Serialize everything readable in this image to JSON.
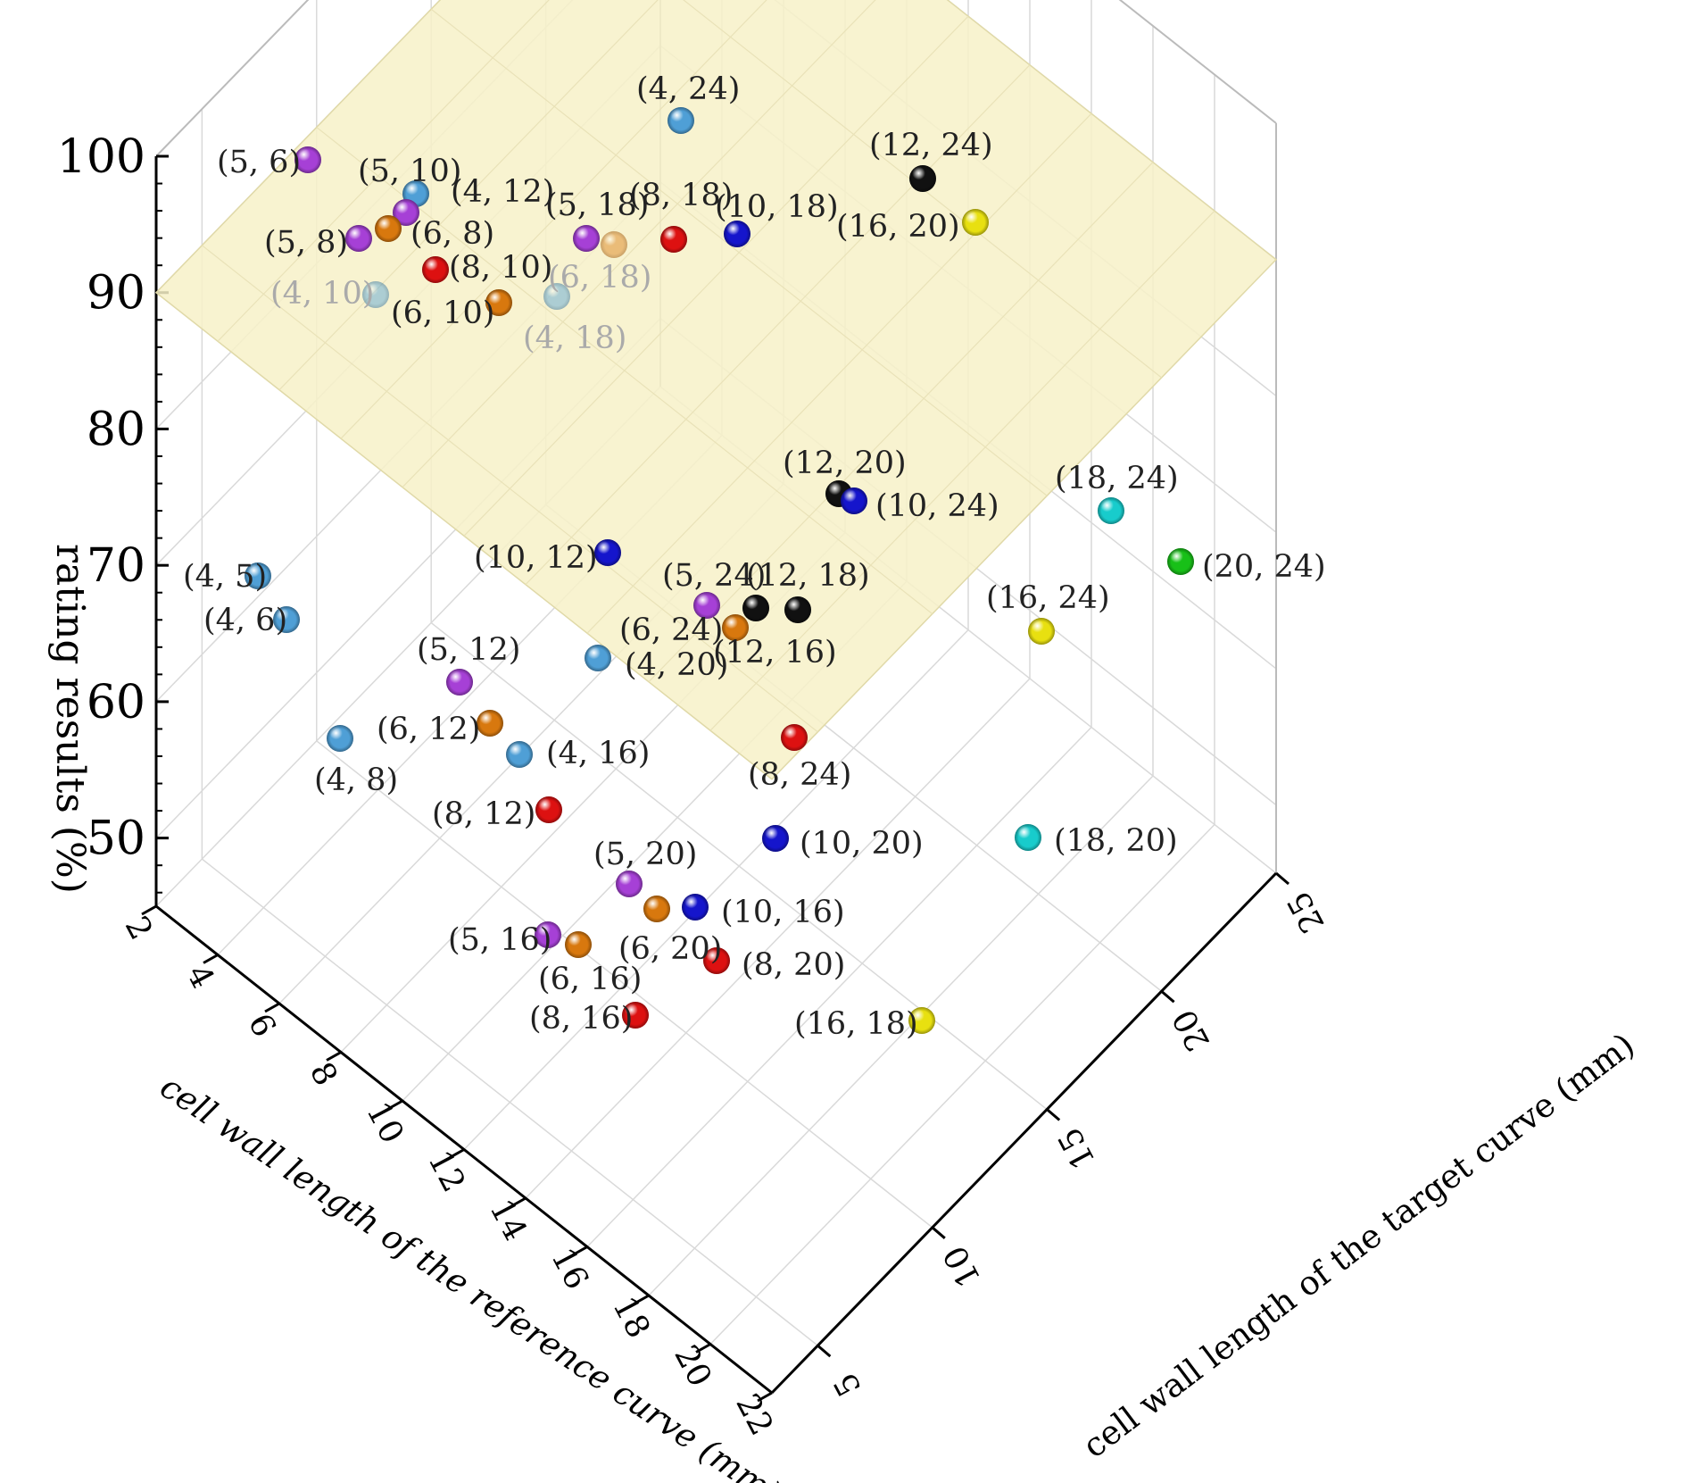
{
  "chart_data": {
    "type": "scatter",
    "title": "",
    "zlabel": "rating results (%)",
    "xlabel": "cell wall length of the reference curve (mm)",
    "ylabel": "cell wall length of the target curve (mm)",
    "zlim": [
      45,
      100
    ],
    "xlim": [
      2,
      22
    ],
    "ylim": [
      3,
      25
    ],
    "threshold_plane": 90,
    "z_ticks": [
      "100",
      "90",
      "80",
      "70",
      "60",
      "50"
    ],
    "x_ticks": [
      "2",
      "4",
      "6",
      "8",
      "10",
      "12",
      "14",
      "16",
      "18",
      "20",
      "22"
    ],
    "y_ticks": [
      "5",
      "10",
      "15",
      "20",
      "25"
    ],
    "colors": {
      "4": "#4f9fd6",
      "5": "#a640d6",
      "6": "#d8780e",
      "8": "#dd1111",
      "10": "#1515cc",
      "12": "#111111",
      "16": "#e8e010",
      "18": "#18cccc",
      "20": "#18c018",
      "plane": "#f7f1c8",
      "grid": "#d9d9d9"
    },
    "points": [
      {
        "label": "(4, 5)",
        "color_key": "4"
      },
      {
        "label": "(4, 6)",
        "color_key": "4"
      },
      {
        "label": "(4, 8)",
        "color_key": "4"
      },
      {
        "label": "(4, 10)",
        "color_key": "4"
      },
      {
        "label": "(4, 12)",
        "color_key": "4"
      },
      {
        "label": "(4, 16)",
        "color_key": "4"
      },
      {
        "label": "(4, 18)",
        "color_key": "4"
      },
      {
        "label": "(4, 20)",
        "color_key": "4"
      },
      {
        "label": "(4, 24)",
        "color_key": "4"
      },
      {
        "label": "(5, 6)",
        "color_key": "5"
      },
      {
        "label": "(5, 8)",
        "color_key": "5"
      },
      {
        "label": "(5, 10)",
        "color_key": "5"
      },
      {
        "label": "(5, 12)",
        "color_key": "5"
      },
      {
        "label": "(5, 16)",
        "color_key": "5"
      },
      {
        "label": "(5, 18)",
        "color_key": "5"
      },
      {
        "label": "(5, 20)",
        "color_key": "5"
      },
      {
        "label": "(5, 24)",
        "color_key": "5"
      },
      {
        "label": "(6, 8)",
        "color_key": "6"
      },
      {
        "label": "(6, 10)",
        "color_key": "6"
      },
      {
        "label": "(6, 12)",
        "color_key": "6"
      },
      {
        "label": "(6, 16)",
        "color_key": "6"
      },
      {
        "label": "(6, 18)",
        "color_key": "6"
      },
      {
        "label": "(6, 20)",
        "color_key": "6"
      },
      {
        "label": "(6, 24)",
        "color_key": "6"
      },
      {
        "label": "(8, 10)",
        "color_key": "8"
      },
      {
        "label": "(8, 12)",
        "color_key": "8"
      },
      {
        "label": "(8, 16)",
        "color_key": "8"
      },
      {
        "label": "(8, 18)",
        "color_key": "8"
      },
      {
        "label": "(8, 20)",
        "color_key": "8"
      },
      {
        "label": "(8, 24)",
        "color_key": "8"
      },
      {
        "label": "(10, 12)",
        "color_key": "10"
      },
      {
        "label": "(10, 16)",
        "color_key": "10"
      },
      {
        "label": "(10, 18)",
        "color_key": "10"
      },
      {
        "label": "(10, 20)",
        "color_key": "10"
      },
      {
        "label": "(10, 24)",
        "color_key": "10"
      },
      {
        "label": "(12, 16)",
        "color_key": "12"
      },
      {
        "label": "(12, 18)",
        "color_key": "12"
      },
      {
        "label": "(12, 20)",
        "color_key": "12"
      },
      {
        "label": "(12, 24)",
        "color_key": "12"
      },
      {
        "label": "(16, 18)",
        "color_key": "16"
      },
      {
        "label": "(16, 20)",
        "color_key": "16"
      },
      {
        "label": "(16, 24)",
        "color_key": "16"
      },
      {
        "label": "(18, 20)",
        "color_key": "18"
      },
      {
        "label": "(18, 24)",
        "color_key": "18"
      },
      {
        "label": "(20, 24)",
        "color_key": "20"
      }
    ]
  }
}
